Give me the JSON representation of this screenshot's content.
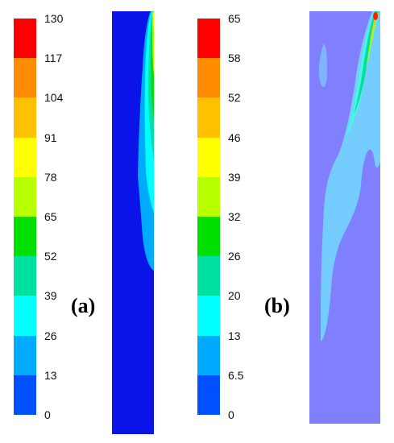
{
  "panels": [
    {
      "id": "a",
      "label": "(a)",
      "ticks": [
        "130",
        "117",
        "104",
        "91",
        "78",
        "65",
        "52",
        "39",
        "26",
        "13",
        "0"
      ]
    },
    {
      "id": "b",
      "label": "(b)",
      "ticks": [
        "65",
        "58",
        "52",
        "46",
        "39",
        "32",
        "26",
        "20",
        "13",
        "6.5",
        "0"
      ]
    }
  ],
  "colormap": [
    "#ff0000",
    "#ff8c00",
    "#ffc000",
    "#ffff00",
    "#b8ff00",
    "#00e000",
    "#00e0a0",
    "#00ffff",
    "#00aaff",
    "#0050ff"
  ],
  "colors": {
    "panel_a_background": "#0a14e8",
    "panel_b_background": "#8080ff"
  }
}
